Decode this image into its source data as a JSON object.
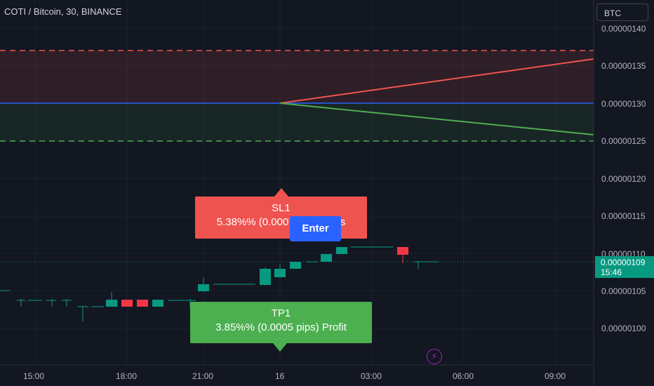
{
  "header": {
    "symbol_title": "COTI / Bitcoin, 30, BINANCE",
    "currency_button": "BTC"
  },
  "price_axis": {
    "ticks": [
      "0.00000140",
      "0.00000135",
      "0.00000130",
      "0.00000125",
      "0.00000120",
      "0.00000115",
      "0.00000110",
      "0.00000105",
      "0.00000100"
    ],
    "current_price": "0.00000109",
    "countdown": "15:46"
  },
  "time_axis": {
    "ticks": [
      "15:00",
      "18:00",
      "21:00",
      "16",
      "03:00",
      "06:00",
      "09:00"
    ]
  },
  "positions": {
    "sl": {
      "title": "SL1",
      "detail": "5.38%% (0.0007 pips) Loss"
    },
    "tp": {
      "title": "TP1",
      "detail": "3.85%% (0.0005 pips) Profit"
    },
    "enter_label": "Enter"
  },
  "icons": {
    "alert": "lightning-icon"
  },
  "colors": {
    "background": "#131722",
    "up": "#089981",
    "down": "#f23645",
    "stop_loss": "#ef5350",
    "take_profit": "#4caf50",
    "entry": "#2962ff"
  },
  "chart_data": {
    "type": "candlestick",
    "title": "COTI / Bitcoin, 30, BINANCE",
    "ylim": [
      9.8e-07,
      1.42e-06
    ],
    "levels": {
      "stop_loss": 1.37e-06,
      "entry": 1.3e-06,
      "take_profit": 1.25e-06
    },
    "legend": "top-left"
  }
}
